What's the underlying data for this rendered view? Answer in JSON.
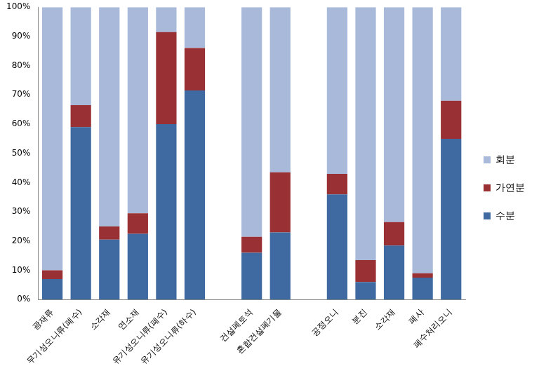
{
  "chart_data": {
    "type": "bar",
    "stacked": true,
    "grid": false,
    "legend": "right",
    "categories": [
      "광재류",
      "무기성오니류(폐수)",
      "소각재",
      "연소재",
      "유기성오니류(폐수)",
      "유기성오니류(하수)",
      null,
      "건설폐토석",
      "혼합건설폐기물",
      null,
      "공정오니",
      "분진",
      "소각재",
      "폐사",
      "폐수처리오니"
    ],
    "series": [
      {
        "name": "수분",
        "color": "#3f6aa1",
        "values": [
          7,
          59,
          20.5,
          22.5,
          60,
          71.5,
          null,
          16,
          23,
          null,
          36,
          6,
          18.5,
          7.5,
          55
        ]
      },
      {
        "name": "가연분",
        "color": "#993033",
        "values": [
          3,
          7.5,
          4.5,
          7,
          31.5,
          14.5,
          null,
          5.5,
          20.5,
          null,
          7,
          7.5,
          8,
          1.5,
          13
        ]
      },
      {
        "name": "회분",
        "color": "#a9b9d9",
        "values": [
          90,
          33.5,
          75,
          70.5,
          8.5,
          14,
          null,
          78.5,
          56.5,
          null,
          57,
          86.5,
          73.5,
          91,
          32
        ]
      }
    ],
    "ylim": [
      0,
      100
    ],
    "yticks": [
      {
        "value": 0,
        "label": "0%"
      },
      {
        "value": 10,
        "label": "10%"
      },
      {
        "value": 20,
        "label": "20%"
      },
      {
        "value": 30,
        "label": "30%"
      },
      {
        "value": 40,
        "label": "40%"
      },
      {
        "value": 50,
        "label": "50%"
      },
      {
        "value": 60,
        "label": "60%"
      },
      {
        "value": 70,
        "label": "70%"
      },
      {
        "value": 80,
        "label": "80%"
      },
      {
        "value": 90,
        "label": "90%"
      },
      {
        "value": 100,
        "label": "100%"
      }
    ]
  }
}
